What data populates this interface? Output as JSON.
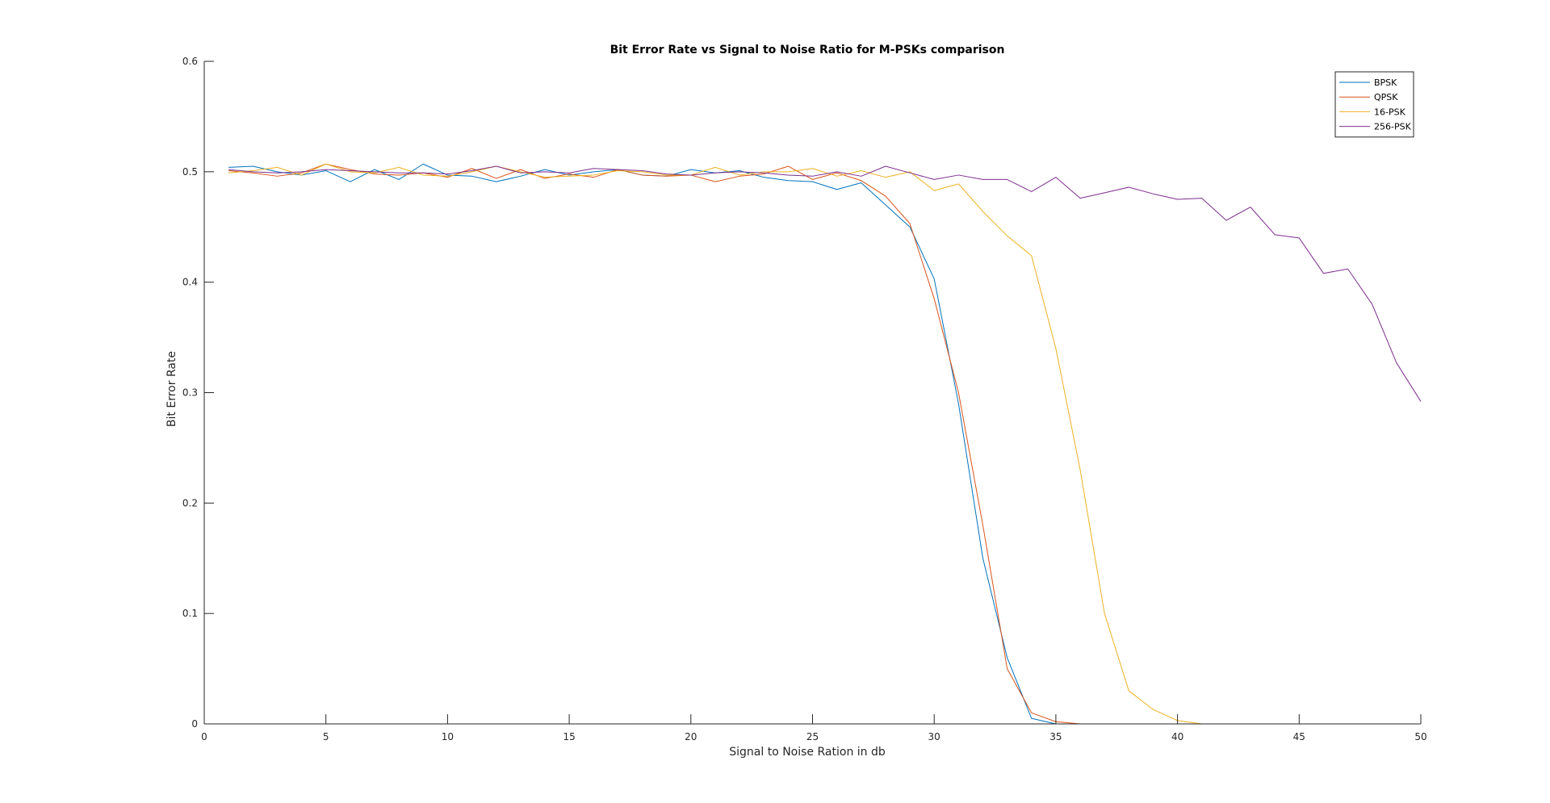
{
  "chart_data": {
    "type": "line",
    "title": "Bit Error Rate vs Signal to Noise Ratio for M-PSKs comparison",
    "xlabel": "Signal to Noise Ration in db",
    "ylabel": "Bit Error Rate",
    "xlim": [
      0,
      50
    ],
    "ylim": [
      0,
      0.6
    ],
    "xticks": [
      0,
      5,
      10,
      15,
      20,
      25,
      30,
      35,
      40,
      45,
      50
    ],
    "yticks": [
      0,
      0.1,
      0.2,
      0.3,
      0.4,
      0.5,
      0.6
    ],
    "xtick_labels": [
      "0",
      "5",
      "10",
      "15",
      "20",
      "25",
      "30",
      "35",
      "40",
      "45",
      "50"
    ],
    "ytick_labels": [
      "0",
      "0.1",
      "0.2",
      "0.3",
      "0.4",
      "0.5",
      "0.6"
    ],
    "grid": false,
    "legend_position": "top-right",
    "x": [
      1,
      2,
      3,
      4,
      5,
      6,
      7,
      8,
      9,
      10,
      11,
      12,
      13,
      14,
      15,
      16,
      17,
      18,
      19,
      20,
      21,
      22,
      23,
      24,
      25,
      26,
      27,
      28,
      29,
      30,
      31,
      32,
      33,
      34,
      35,
      36,
      37,
      38,
      39,
      40,
      41,
      42,
      43,
      44,
      45,
      46,
      47,
      48,
      49,
      50
    ],
    "series": [
      {
        "name": "BPSK",
        "color": "#0072BD",
        "values": [
          0.504,
          0.505,
          0.5,
          0.497,
          0.501,
          0.491,
          0.502,
          0.493,
          0.507,
          0.497,
          0.496,
          0.491,
          0.496,
          0.502,
          0.497,
          0.5,
          0.502,
          0.497,
          0.496,
          0.502,
          0.499,
          0.501,
          0.495,
          0.492,
          0.491,
          0.484,
          0.49,
          0.47,
          0.45,
          0.403,
          0.29,
          0.15,
          0.06,
          0.005,
          0.0,
          0.0,
          0.0,
          0.0,
          0.0,
          0.0,
          0.0,
          0.0,
          0.0,
          0.0,
          0.0,
          0.0,
          0.0,
          0.0,
          0.0,
          0.0
        ]
      },
      {
        "name": "QPSK",
        "color": "#D95319",
        "values": [
          0.501,
          0.499,
          0.496,
          0.499,
          0.507,
          0.502,
          0.498,
          0.497,
          0.499,
          0.495,
          0.503,
          0.494,
          0.502,
          0.494,
          0.498,
          0.495,
          0.502,
          0.497,
          0.496,
          0.497,
          0.491,
          0.496,
          0.498,
          0.505,
          0.493,
          0.499,
          0.492,
          0.478,
          0.453,
          0.385,
          0.3,
          0.18,
          0.05,
          0.01,
          0.002,
          0.0,
          0.0,
          0.0,
          0.0,
          0.0,
          0.0,
          0.0,
          0.0,
          0.0,
          0.0,
          0.0,
          0.0,
          0.0,
          0.0,
          0.0
        ]
      },
      {
        "name": "16-PSK",
        "color": "#EDB120",
        "values": [
          0.499,
          0.501,
          0.504,
          0.497,
          0.507,
          0.5,
          0.499,
          0.504,
          0.497,
          0.496,
          0.5,
          0.505,
          0.5,
          0.495,
          0.496,
          0.497,
          0.501,
          0.5,
          0.497,
          0.497,
          0.504,
          0.497,
          0.5,
          0.5,
          0.503,
          0.496,
          0.501,
          0.495,
          0.5,
          0.483,
          0.489,
          0.464,
          0.442,
          0.424,
          0.34,
          0.23,
          0.1,
          0.03,
          0.013,
          0.003,
          0.0,
          0.0,
          0.0,
          0.0,
          0.0,
          0.0,
          0.0,
          0.0,
          0.0,
          0.0
        ]
      },
      {
        "name": "256-PSK",
        "color": "#7E2F8E",
        "values": [
          0.502,
          0.5,
          0.499,
          0.5,
          0.502,
          0.501,
          0.5,
          0.499,
          0.499,
          0.498,
          0.501,
          0.505,
          0.499,
          0.5,
          0.499,
          0.503,
          0.502,
          0.501,
          0.498,
          0.497,
          0.499,
          0.5,
          0.499,
          0.497,
          0.496,
          0.5,
          0.496,
          0.505,
          0.499,
          0.493,
          0.497,
          0.493,
          0.493,
          0.482,
          0.495,
          0.476,
          0.481,
          0.486,
          0.48,
          0.475,
          0.476,
          0.456,
          0.468,
          0.443,
          0.44,
          0.408,
          0.412,
          0.38,
          0.327,
          0.292
        ]
      }
    ]
  }
}
